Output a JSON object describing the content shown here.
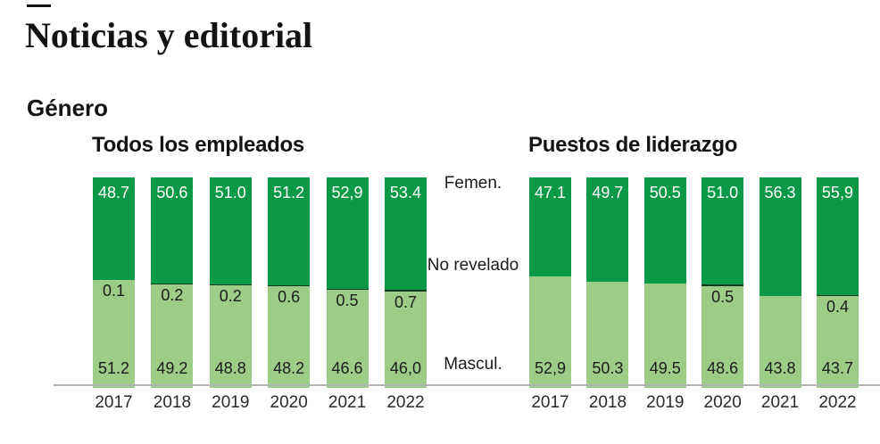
{
  "page_title": "Noticias y editorial",
  "section_title": "Género",
  "legend": {
    "femen": "Femen.",
    "no_revelado": "No revelado",
    "mascul": "Mascul."
  },
  "colors": {
    "femen": "#0a9a46",
    "no_revelado": "#16371f",
    "mascul": "#9bcd87",
    "axis_line": "#b5b5b5"
  },
  "chart_data": [
    {
      "type": "bar",
      "stacked": true,
      "title": "Todos los empleados",
      "categories": [
        "2017",
        "2018",
        "2019",
        "2020",
        "2021",
        "2022"
      ],
      "ylim": [
        0,
        100
      ],
      "grid": false,
      "legend_position": "center-right-of-chart",
      "series": [
        {
          "name": "Femen.",
          "values": [
            48.7,
            50.6,
            51.0,
            51.2,
            52.9,
            53.4
          ],
          "labels": [
            "48.7",
            "50.6",
            "51.0",
            "51.2",
            "52,9",
            "53.4"
          ]
        },
        {
          "name": "No revelado",
          "values": [
            0.1,
            0.2,
            0.2,
            0.6,
            0.5,
            0.7
          ],
          "labels": [
            "0.1",
            "0.2",
            "0.2",
            "0.6",
            "0.5",
            "0.7"
          ]
        },
        {
          "name": "Mascul.",
          "values": [
            51.2,
            49.2,
            48.8,
            48.2,
            46.6,
            46.0
          ],
          "labels": [
            "51.2",
            "49.2",
            "48.8",
            "48.2",
            "46.6",
            "46,0"
          ]
        }
      ]
    },
    {
      "type": "bar",
      "stacked": true,
      "title": "Puestos de liderazgo",
      "categories": [
        "2017",
        "2018",
        "2019",
        "2020",
        "2021",
        "2022"
      ],
      "ylim": [
        0,
        100
      ],
      "grid": false,
      "series": [
        {
          "name": "Femen.",
          "values": [
            47.1,
            49.7,
            50.5,
            51.0,
            56.3,
            55.9
          ],
          "labels": [
            "47.1",
            "49.7",
            "50.5",
            "51.0",
            "56.3",
            "55,9"
          ]
        },
        {
          "name": "No revelado",
          "values": [
            0,
            0,
            0,
            0.5,
            0,
            0.4
          ],
          "labels": [
            "",
            "",
            "",
            "0.5",
            "",
            "0.4"
          ]
        },
        {
          "name": "Mascul.",
          "values": [
            52.9,
            50.3,
            49.5,
            48.6,
            43.8,
            43.7
          ],
          "labels": [
            "52,9",
            "50.3",
            "49.5",
            "48.6",
            "43.8",
            "43.7"
          ]
        }
      ]
    }
  ]
}
